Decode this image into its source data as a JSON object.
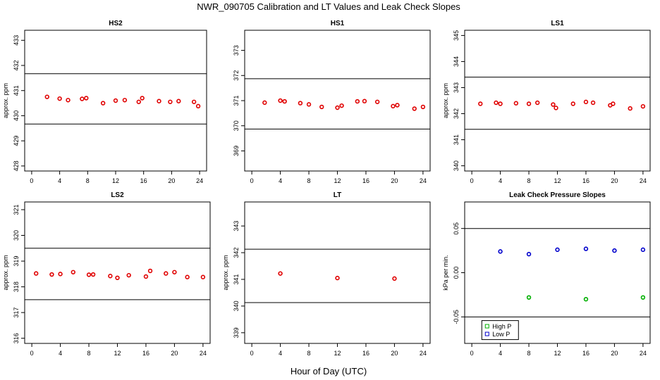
{
  "figure": {
    "title": "NWR_090705  Calibration and LT Values and Leak Check Slopes",
    "xlabel": "Hour of Day (UTC)"
  },
  "colors": {
    "cal": "#e00000",
    "high": "#00b000",
    "low": "#0000cc",
    "ref": "#000000"
  },
  "chart_data": [
    {
      "type": "scatter",
      "title": "HS2",
      "ylabel": "approx. ppm",
      "xlim": [
        -1,
        25
      ],
      "ylim": [
        427.8,
        433.4
      ],
      "xticks": [
        0,
        4,
        8,
        12,
        16,
        20,
        24
      ],
      "yticks": [
        428,
        429,
        430,
        431,
        432,
        433
      ],
      "reference_lines": [
        429.67,
        431.67
      ],
      "series": [
        {
          "marker": "circle",
          "color": "#e00000",
          "x": [
            2.2,
            4,
            5.2,
            7.2,
            7.8,
            10.2,
            12,
            13.3,
            15.3,
            15.8,
            18.2,
            19.8,
            21,
            23.2,
            23.8
          ],
          "y": [
            430.75,
            430.68,
            430.62,
            430.67,
            430.7,
            430.5,
            430.6,
            430.62,
            430.55,
            430.7,
            430.58,
            430.55,
            430.58,
            430.55,
            430.38
          ]
        }
      ]
    },
    {
      "type": "scatter",
      "title": "HS1",
      "ylabel": "",
      "xlim": [
        -1,
        25
      ],
      "ylim": [
        368.2,
        373.8
      ],
      "xticks": [
        0,
        4,
        8,
        12,
        16,
        20,
        24
      ],
      "yticks": [
        369,
        370,
        371,
        372,
        373
      ],
      "reference_lines": [
        369.87,
        371.87
      ],
      "series": [
        {
          "marker": "circle",
          "color": "#e00000",
          "x": [
            1.8,
            4,
            4.6,
            6.8,
            8,
            9.8,
            12,
            12.6,
            14.8,
            15.8,
            17.6,
            19.8,
            20.4,
            22.8,
            24
          ],
          "y": [
            370.92,
            371.0,
            370.97,
            370.9,
            370.85,
            370.75,
            370.72,
            370.8,
            370.97,
            370.98,
            370.95,
            370.78,
            370.82,
            370.68,
            370.75
          ]
        }
      ]
    },
    {
      "type": "scatter",
      "title": "LS1",
      "ylabel": "approx. ppm",
      "xlim": [
        -1,
        25
      ],
      "ylim": [
        339.8,
        345.2
      ],
      "xticks": [
        0,
        4,
        8,
        12,
        16,
        20,
        24
      ],
      "yticks": [
        340,
        341,
        342,
        343,
        344,
        345
      ],
      "reference_lines": [
        341.4,
        343.4
      ],
      "series": [
        {
          "marker": "circle",
          "color": "#e00000",
          "x": [
            1.2,
            3.4,
            4,
            6.2,
            8,
            9.2,
            11.4,
            11.8,
            14.2,
            16,
            17,
            19.4,
            19.8,
            22.2,
            24
          ],
          "y": [
            342.38,
            342.42,
            342.38,
            342.4,
            342.38,
            342.42,
            342.35,
            342.22,
            342.38,
            342.45,
            342.42,
            342.32,
            342.38,
            342.2,
            342.28
          ]
        }
      ]
    },
    {
      "type": "scatter",
      "title": "LS2",
      "ylabel": "approx. ppm",
      "xlim": [
        -1,
        25
      ],
      "ylim": [
        315.8,
        321.3
      ],
      "xticks": [
        0,
        4,
        8,
        12,
        16,
        20,
        24
      ],
      "yticks": [
        316,
        317,
        318,
        319,
        320,
        321
      ],
      "reference_lines": [
        317.5,
        319.5
      ],
      "series": [
        {
          "marker": "circle",
          "color": "#e00000",
          "x": [
            0.6,
            2.8,
            4,
            5.8,
            8,
            8.6,
            11,
            12,
            13.6,
            16,
            16.6,
            18.8,
            20,
            21.8,
            24
          ],
          "y": [
            318.52,
            318.48,
            318.5,
            318.57,
            318.47,
            318.48,
            318.42,
            318.35,
            318.45,
            318.4,
            318.62,
            318.52,
            318.57,
            318.38,
            318.38
          ]
        }
      ]
    },
    {
      "type": "scatter",
      "title": "LT",
      "ylabel": "approx. ppm",
      "xlim": [
        -1,
        25
      ],
      "ylim": [
        338.6,
        343.9
      ],
      "xticks": [
        0,
        4,
        8,
        12,
        16,
        20,
        24
      ],
      "yticks": [
        339,
        340,
        341,
        342,
        343
      ],
      "reference_lines": [
        340.13,
        342.13
      ],
      "series": [
        {
          "marker": "circle",
          "color": "#e00000",
          "x": [
            4,
            12,
            20
          ],
          "y": [
            341.22,
            341.05,
            341.03
          ]
        }
      ]
    },
    {
      "type": "scatter",
      "title": "Leak Check Pressure Slopes",
      "ylabel": "kPa per min.",
      "xlim": [
        -1,
        25
      ],
      "ylim": [
        -0.08,
        0.08
      ],
      "xticks": [
        0,
        4,
        8,
        12,
        16,
        20,
        24
      ],
      "yticks": [
        -0.05,
        0.0,
        0.05
      ],
      "ytick_labels": [
        "-0.05",
        "0.00",
        "0.05"
      ],
      "reference_lines": [
        -0.05,
        0.05
      ],
      "legend": {
        "placement": "bottom-center",
        "items": [
          "High P",
          "Low P"
        ]
      },
      "series": [
        {
          "name": "High P",
          "marker": "circle",
          "color": "#00b000",
          "x": [
            8,
            16,
            24
          ],
          "y": [
            -0.028,
            -0.03,
            -0.028
          ]
        },
        {
          "name": "Low P",
          "marker": "circle",
          "color": "#0000cc",
          "x": [
            4,
            8,
            12,
            16,
            20,
            24
          ],
          "y": [
            0.024,
            0.021,
            0.026,
            0.027,
            0.025,
            0.026
          ]
        }
      ]
    }
  ]
}
